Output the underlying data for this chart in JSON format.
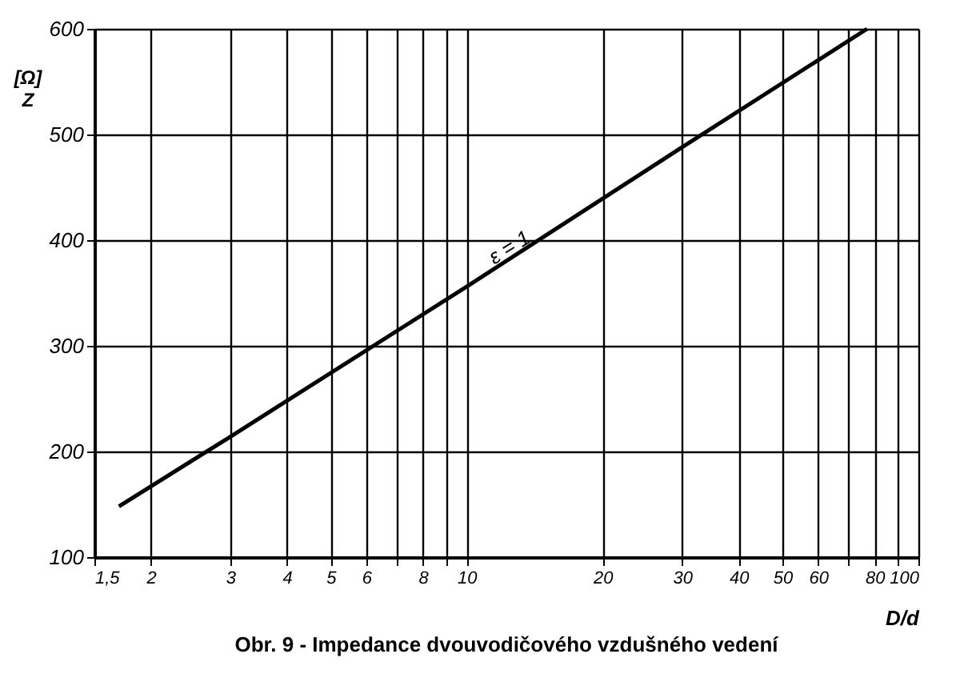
{
  "chart_data": {
    "type": "line",
    "title": "Obr. 9  - Impedance dvouvodičového vzdušného vedení",
    "xlabel": "D/d",
    "ylabel": "[Ω] Z",
    "x": [
      1.7,
      3,
      10,
      30,
      77
    ],
    "series": [
      {
        "color": "#000000",
        "values": [
          148,
          214,
          356,
          488,
          600
        ]
      }
    ],
    "annotations": [
      {
        "text": "ε = 1",
        "x": 13,
        "y": 380
      }
    ],
    "log": "x",
    "xlim": [
      1.5,
      100
    ],
    "ylim": [
      100,
      600
    ],
    "xticks": [
      {
        "value": 1.5,
        "label": "1,5"
      },
      2,
      3,
      4,
      5,
      6,
      {
        "value": 7,
        "label": null
      },
      8,
      {
        "value": 9,
        "label": null
      },
      10,
      20,
      30,
      40,
      50,
      60,
      {
        "value": 70,
        "label": null
      },
      80,
      {
        "value": 90,
        "label": null
      },
      100
    ],
    "yticks": [
      100,
      200,
      300,
      400,
      500,
      600
    ],
    "grid": true,
    "marker": "none",
    "line_style": "solid"
  }
}
